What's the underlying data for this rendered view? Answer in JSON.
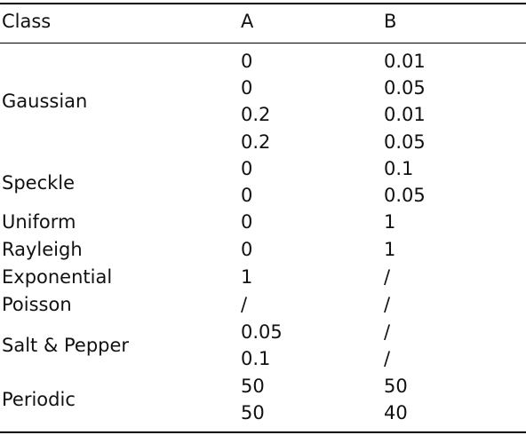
{
  "table": {
    "headers": {
      "class": "Class",
      "a": "A",
      "b": "B"
    },
    "classes": [
      "Gaussian",
      "Speckle",
      "Uniform",
      "Rayleigh",
      "Exponential",
      "Poisson",
      "Salt & Pepper",
      "Periodic"
    ],
    "rows": [
      {
        "a": "0",
        "b": "0.01"
      },
      {
        "a": "0",
        "b": "0.05"
      },
      {
        "a": "0.2",
        "b": "0.01"
      },
      {
        "a": "0.2",
        "b": "0.05"
      },
      {
        "a": "0",
        "b": "0.1"
      },
      {
        "a": "0",
        "b": "0.05"
      },
      {
        "a": "0",
        "b": "1"
      },
      {
        "a": "0",
        "b": "1"
      },
      {
        "a": "1",
        "b": "/"
      },
      {
        "a": "/",
        "b": "/"
      },
      {
        "a": "0.05",
        "b": "/"
      },
      {
        "a": "0.1",
        "b": "/"
      },
      {
        "a": "50",
        "b": "50"
      },
      {
        "a": "50",
        "b": "40"
      }
    ]
  }
}
